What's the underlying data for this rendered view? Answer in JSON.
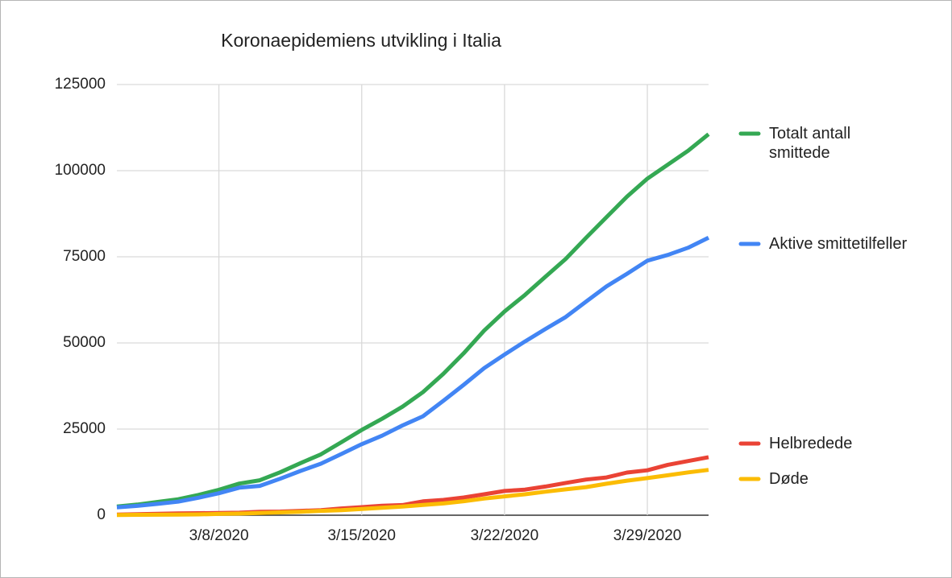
{
  "chart_data": {
    "type": "line",
    "title": "Koronaepidemiens utvikling i Italia",
    "x": [
      "3/3/2020",
      "3/4/2020",
      "3/5/2020",
      "3/6/2020",
      "3/7/2020",
      "3/8/2020",
      "3/9/2020",
      "3/10/2020",
      "3/11/2020",
      "3/12/2020",
      "3/13/2020",
      "3/14/2020",
      "3/15/2020",
      "3/16/2020",
      "3/17/2020",
      "3/18/2020",
      "3/19/2020",
      "3/20/2020",
      "3/21/2020",
      "3/22/2020",
      "3/23/2020",
      "3/24/2020",
      "3/25/2020",
      "3/26/2020",
      "3/27/2020",
      "3/28/2020",
      "3/29/2020",
      "3/30/2020",
      "3/31/2020",
      "4/1/2020"
    ],
    "xticks": [
      "3/8/2020",
      "3/15/2020",
      "3/22/2020",
      "3/29/2020"
    ],
    "ylim": [
      0,
      125000
    ],
    "yticks": [
      0,
      25000,
      50000,
      75000,
      100000,
      125000
    ],
    "grid": true,
    "legend": "right",
    "series": [
      {
        "name": "Totalt antall smittede",
        "color": "#34a853",
        "values": [
          2502,
          3089,
          3858,
          4636,
          5883,
          7375,
          9172,
          10149,
          12462,
          15113,
          17660,
          21157,
          24747,
          27980,
          31506,
          35713,
          41035,
          47021,
          53578,
          59138,
          63927,
          69176,
          74386,
          80539,
          86498,
          92472,
          97689,
          101739,
          105792,
          110574
        ]
      },
      {
        "name": "Aktive smittetilfeller",
        "color": "#4285f4",
        "values": [
          2263,
          2706,
          3296,
          3916,
          5061,
          6387,
          7985,
          8514,
          10590,
          12839,
          14955,
          17750,
          20603,
          23073,
          26062,
          28710,
          33190,
          37860,
          42681,
          46638,
          50418,
          54030,
          57521,
          62013,
          66414,
          70065,
          73880,
          75528,
          77635,
          80572
        ]
      },
      {
        "name": "Helbredede",
        "color": "#ea4335",
        "values": [
          160,
          276,
          414,
          523,
          589,
          622,
          724,
          1004,
          1045,
          1258,
          1439,
          1966,
          2335,
          2749,
          2941,
          4025,
          4440,
          5129,
          6072,
          7024,
          7432,
          8326,
          9362,
          10361,
          10950,
          12384,
          13030,
          14620,
          15729,
          16847
        ]
      },
      {
        "name": "Døde",
        "color": "#fbbc04",
        "values": [
          79,
          107,
          148,
          197,
          233,
          366,
          463,
          631,
          827,
          1016,
          1266,
          1441,
          1809,
          2158,
          2503,
          2978,
          3405,
          4032,
          4825,
          5476,
          6077,
          6820,
          7503,
          8165,
          9134,
          10023,
          10779,
          11591,
          12428,
          13155
        ]
      }
    ]
  }
}
